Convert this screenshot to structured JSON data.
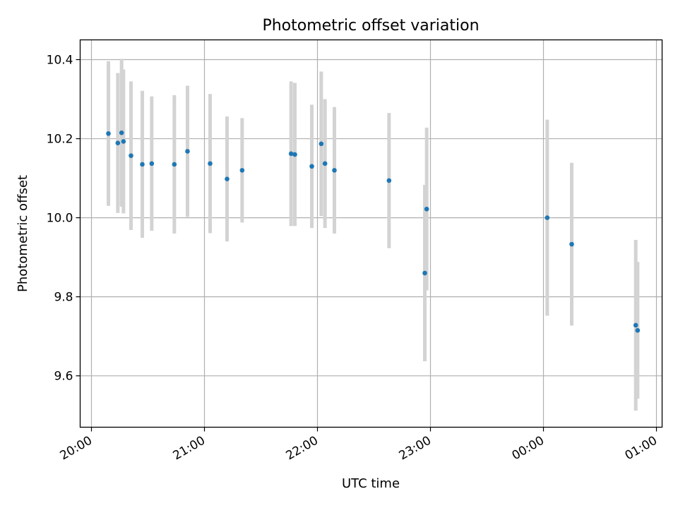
{
  "chart_data": {
    "type": "scatter",
    "title": "Photometric offset variation",
    "xlabel": "UTC time",
    "ylabel": "Photometric offset",
    "x_axis": {
      "type": "time",
      "range": [
        "19:54",
        "25:03"
      ],
      "ticks": [
        "20:00",
        "21:00",
        "22:00",
        "23:00",
        "00:00",
        "01:00"
      ]
    },
    "y_axis": {
      "range": [
        9.47,
        10.45
      ],
      "ticks": [
        "9.6",
        "9.8",
        "10.0",
        "10.2",
        "10.4"
      ]
    },
    "grid": true,
    "marker_color": "#1f77b4",
    "errorbar_color": "#d3d3d3",
    "points": [
      {
        "time": "20:09",
        "y": 10.213,
        "err": 0.183
      },
      {
        "time": "20:14",
        "y": 10.189,
        "err": 0.177
      },
      {
        "time": "20:16",
        "y": 10.215,
        "err": 0.187
      },
      {
        "time": "20:17",
        "y": 10.193,
        "err": 0.182
      },
      {
        "time": "20:21",
        "y": 10.157,
        "err": 0.188
      },
      {
        "time": "20:27",
        "y": 10.135,
        "err": 0.186
      },
      {
        "time": "20:32",
        "y": 10.137,
        "err": 0.17
      },
      {
        "time": "20:44",
        "y": 10.135,
        "err": 0.175
      },
      {
        "time": "20:51",
        "y": 10.168,
        "err": 0.166
      },
      {
        "time": "21:03",
        "y": 10.137,
        "err": 0.176
      },
      {
        "time": "21:12",
        "y": 10.098,
        "err": 0.158
      },
      {
        "time": "21:20",
        "y": 10.12,
        "err": 0.132
      },
      {
        "time": "21:46",
        "y": 10.162,
        "err": 0.183
      },
      {
        "time": "21:48",
        "y": 10.16,
        "err": 0.181
      },
      {
        "time": "21:57",
        "y": 10.13,
        "err": 0.156
      },
      {
        "time": "22:02",
        "y": 10.187,
        "err": 0.183
      },
      {
        "time": "22:04",
        "y": 10.137,
        "err": 0.163
      },
      {
        "time": "22:09",
        "y": 10.12,
        "err": 0.16
      },
      {
        "time": "22:38",
        "y": 10.094,
        "err": 0.171
      },
      {
        "time": "22:57",
        "y": 9.86,
        "err": 0.223
      },
      {
        "time": "22:58",
        "y": 10.022,
        "err": 0.206
      },
      {
        "time": "24:02",
        "y": 10.0,
        "err": 0.248
      },
      {
        "time": "24:15",
        "y": 9.933,
        "err": 0.206
      },
      {
        "time": "24:49",
        "y": 9.728,
        "err": 0.216
      },
      {
        "time": "24:50",
        "y": 9.715,
        "err": 0.173
      }
    ]
  }
}
